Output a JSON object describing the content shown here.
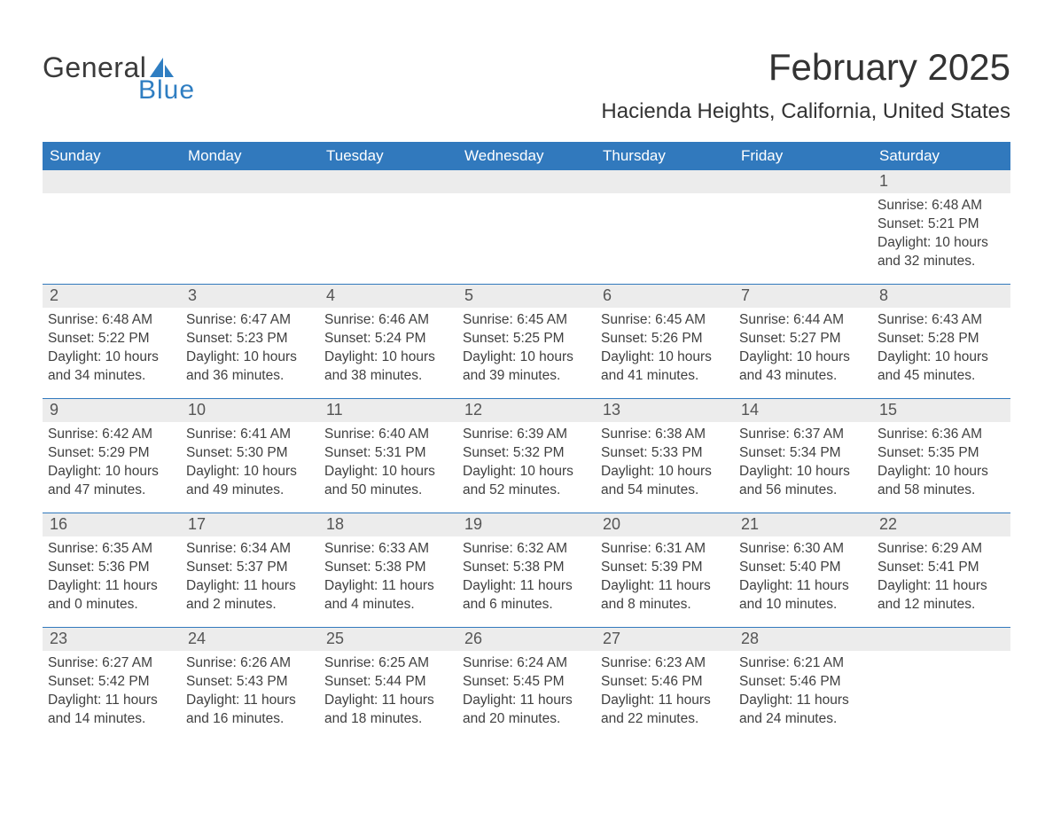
{
  "logo": {
    "word1": "General",
    "word2": "Blue",
    "icon_color": "#2f7ec2"
  },
  "title": "February 2025",
  "location": "Hacienda Heights, California, United States",
  "colors": {
    "header_bg": "#3179bd",
    "header_text": "#ffffff",
    "date_bar_bg": "#ececec",
    "week_border": "#3179bd",
    "body_text": "#404040"
  },
  "day_names": [
    "Sunday",
    "Monday",
    "Tuesday",
    "Wednesday",
    "Thursday",
    "Friday",
    "Saturday"
  ],
  "weeks": [
    [
      {
        "empty": true
      },
      {
        "empty": true
      },
      {
        "empty": true
      },
      {
        "empty": true
      },
      {
        "empty": true
      },
      {
        "empty": true
      },
      {
        "date": "1",
        "sunrise": "Sunrise: 6:48 AM",
        "sunset": "Sunset: 5:21 PM",
        "daylight": "Daylight: 10 hours and 32 minutes."
      }
    ],
    [
      {
        "date": "2",
        "sunrise": "Sunrise: 6:48 AM",
        "sunset": "Sunset: 5:22 PM",
        "daylight": "Daylight: 10 hours and 34 minutes."
      },
      {
        "date": "3",
        "sunrise": "Sunrise: 6:47 AM",
        "sunset": "Sunset: 5:23 PM",
        "daylight": "Daylight: 10 hours and 36 minutes."
      },
      {
        "date": "4",
        "sunrise": "Sunrise: 6:46 AM",
        "sunset": "Sunset: 5:24 PM",
        "daylight": "Daylight: 10 hours and 38 minutes."
      },
      {
        "date": "5",
        "sunrise": "Sunrise: 6:45 AM",
        "sunset": "Sunset: 5:25 PM",
        "daylight": "Daylight: 10 hours and 39 minutes."
      },
      {
        "date": "6",
        "sunrise": "Sunrise: 6:45 AM",
        "sunset": "Sunset: 5:26 PM",
        "daylight": "Daylight: 10 hours and 41 minutes."
      },
      {
        "date": "7",
        "sunrise": "Sunrise: 6:44 AM",
        "sunset": "Sunset: 5:27 PM",
        "daylight": "Daylight: 10 hours and 43 minutes."
      },
      {
        "date": "8",
        "sunrise": "Sunrise: 6:43 AM",
        "sunset": "Sunset: 5:28 PM",
        "daylight": "Daylight: 10 hours and 45 minutes."
      }
    ],
    [
      {
        "date": "9",
        "sunrise": "Sunrise: 6:42 AM",
        "sunset": "Sunset: 5:29 PM",
        "daylight": "Daylight: 10 hours and 47 minutes."
      },
      {
        "date": "10",
        "sunrise": "Sunrise: 6:41 AM",
        "sunset": "Sunset: 5:30 PM",
        "daylight": "Daylight: 10 hours and 49 minutes."
      },
      {
        "date": "11",
        "sunrise": "Sunrise: 6:40 AM",
        "sunset": "Sunset: 5:31 PM",
        "daylight": "Daylight: 10 hours and 50 minutes."
      },
      {
        "date": "12",
        "sunrise": "Sunrise: 6:39 AM",
        "sunset": "Sunset: 5:32 PM",
        "daylight": "Daylight: 10 hours and 52 minutes."
      },
      {
        "date": "13",
        "sunrise": "Sunrise: 6:38 AM",
        "sunset": "Sunset: 5:33 PM",
        "daylight": "Daylight: 10 hours and 54 minutes."
      },
      {
        "date": "14",
        "sunrise": "Sunrise: 6:37 AM",
        "sunset": "Sunset: 5:34 PM",
        "daylight": "Daylight: 10 hours and 56 minutes."
      },
      {
        "date": "15",
        "sunrise": "Sunrise: 6:36 AM",
        "sunset": "Sunset: 5:35 PM",
        "daylight": "Daylight: 10 hours and 58 minutes."
      }
    ],
    [
      {
        "date": "16",
        "sunrise": "Sunrise: 6:35 AM",
        "sunset": "Sunset: 5:36 PM",
        "daylight": "Daylight: 11 hours and 0 minutes."
      },
      {
        "date": "17",
        "sunrise": "Sunrise: 6:34 AM",
        "sunset": "Sunset: 5:37 PM",
        "daylight": "Daylight: 11 hours and 2 minutes."
      },
      {
        "date": "18",
        "sunrise": "Sunrise: 6:33 AM",
        "sunset": "Sunset: 5:38 PM",
        "daylight": "Daylight: 11 hours and 4 minutes."
      },
      {
        "date": "19",
        "sunrise": "Sunrise: 6:32 AM",
        "sunset": "Sunset: 5:38 PM",
        "daylight": "Daylight: 11 hours and 6 minutes."
      },
      {
        "date": "20",
        "sunrise": "Sunrise: 6:31 AM",
        "sunset": "Sunset: 5:39 PM",
        "daylight": "Daylight: 11 hours and 8 minutes."
      },
      {
        "date": "21",
        "sunrise": "Sunrise: 6:30 AM",
        "sunset": "Sunset: 5:40 PM",
        "daylight": "Daylight: 11 hours and 10 minutes."
      },
      {
        "date": "22",
        "sunrise": "Sunrise: 6:29 AM",
        "sunset": "Sunset: 5:41 PM",
        "daylight": "Daylight: 11 hours and 12 minutes."
      }
    ],
    [
      {
        "date": "23",
        "sunrise": "Sunrise: 6:27 AM",
        "sunset": "Sunset: 5:42 PM",
        "daylight": "Daylight: 11 hours and 14 minutes."
      },
      {
        "date": "24",
        "sunrise": "Sunrise: 6:26 AM",
        "sunset": "Sunset: 5:43 PM",
        "daylight": "Daylight: 11 hours and 16 minutes."
      },
      {
        "date": "25",
        "sunrise": "Sunrise: 6:25 AM",
        "sunset": "Sunset: 5:44 PM",
        "daylight": "Daylight: 11 hours and 18 minutes."
      },
      {
        "date": "26",
        "sunrise": "Sunrise: 6:24 AM",
        "sunset": "Sunset: 5:45 PM",
        "daylight": "Daylight: 11 hours and 20 minutes."
      },
      {
        "date": "27",
        "sunrise": "Sunrise: 6:23 AM",
        "sunset": "Sunset: 5:46 PM",
        "daylight": "Daylight: 11 hours and 22 minutes."
      },
      {
        "date": "28",
        "sunrise": "Sunrise: 6:21 AM",
        "sunset": "Sunset: 5:46 PM",
        "daylight": "Daylight: 11 hours and 24 minutes."
      },
      {
        "empty": true
      }
    ]
  ]
}
